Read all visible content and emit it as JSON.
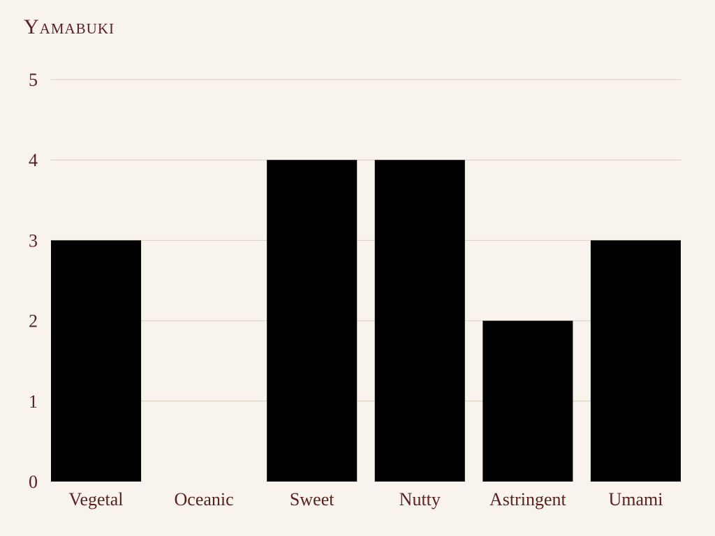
{
  "chart_data": {
    "type": "bar",
    "title": "Yamabuki",
    "categories": [
      "Vegetal",
      "Oceanic",
      "Sweet",
      "Nutty",
      "Astringent",
      "Umami"
    ],
    "values": [
      3,
      0,
      4,
      4,
      2,
      3
    ],
    "xlabel": "",
    "ylabel": "",
    "ylim": [
      0,
      5
    ],
    "yticks": [
      0,
      1,
      2,
      3,
      4,
      5
    ],
    "grid": true,
    "legend": "none"
  },
  "colors": {
    "background": "#f8f3ec",
    "bar": "#000000",
    "text": "#5a1f1f",
    "grid": "#d8d0c0"
  }
}
